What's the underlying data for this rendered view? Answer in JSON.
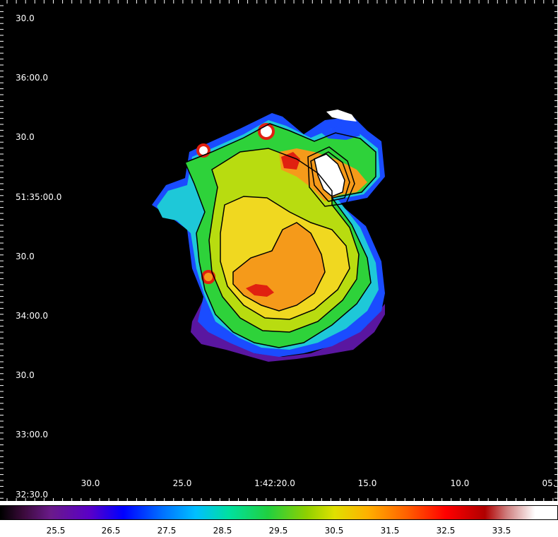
{
  "axes": {
    "y_labels": [
      "30.0",
      "36:00.0",
      "30.0",
      "51:35:00.0",
      "30.0",
      "34:00.0",
      "30.0",
      "33:00.0",
      "32:30.0"
    ],
    "x_labels": [
      "30.0",
      "25.0",
      "1:42:20.0",
      "15.0",
      "10.0",
      "05."
    ]
  },
  "colorbar": {
    "ticks": [
      "25.5",
      "26.5",
      "27.5",
      "28.5",
      "29.5",
      "30.5",
      "31.5",
      "32.5",
      "33.5"
    ]
  },
  "colors": {
    "background": "#000000",
    "outer_blue": "#1a4cff",
    "cyan": "#1ec8d8",
    "green": "#2ed23a",
    "yellow_green": "#b8dc10",
    "yellow": "#f0d820",
    "orange": "#f59a1a",
    "red": "#e02010",
    "purple": "#6a12a8",
    "white": "#ffffff"
  }
}
